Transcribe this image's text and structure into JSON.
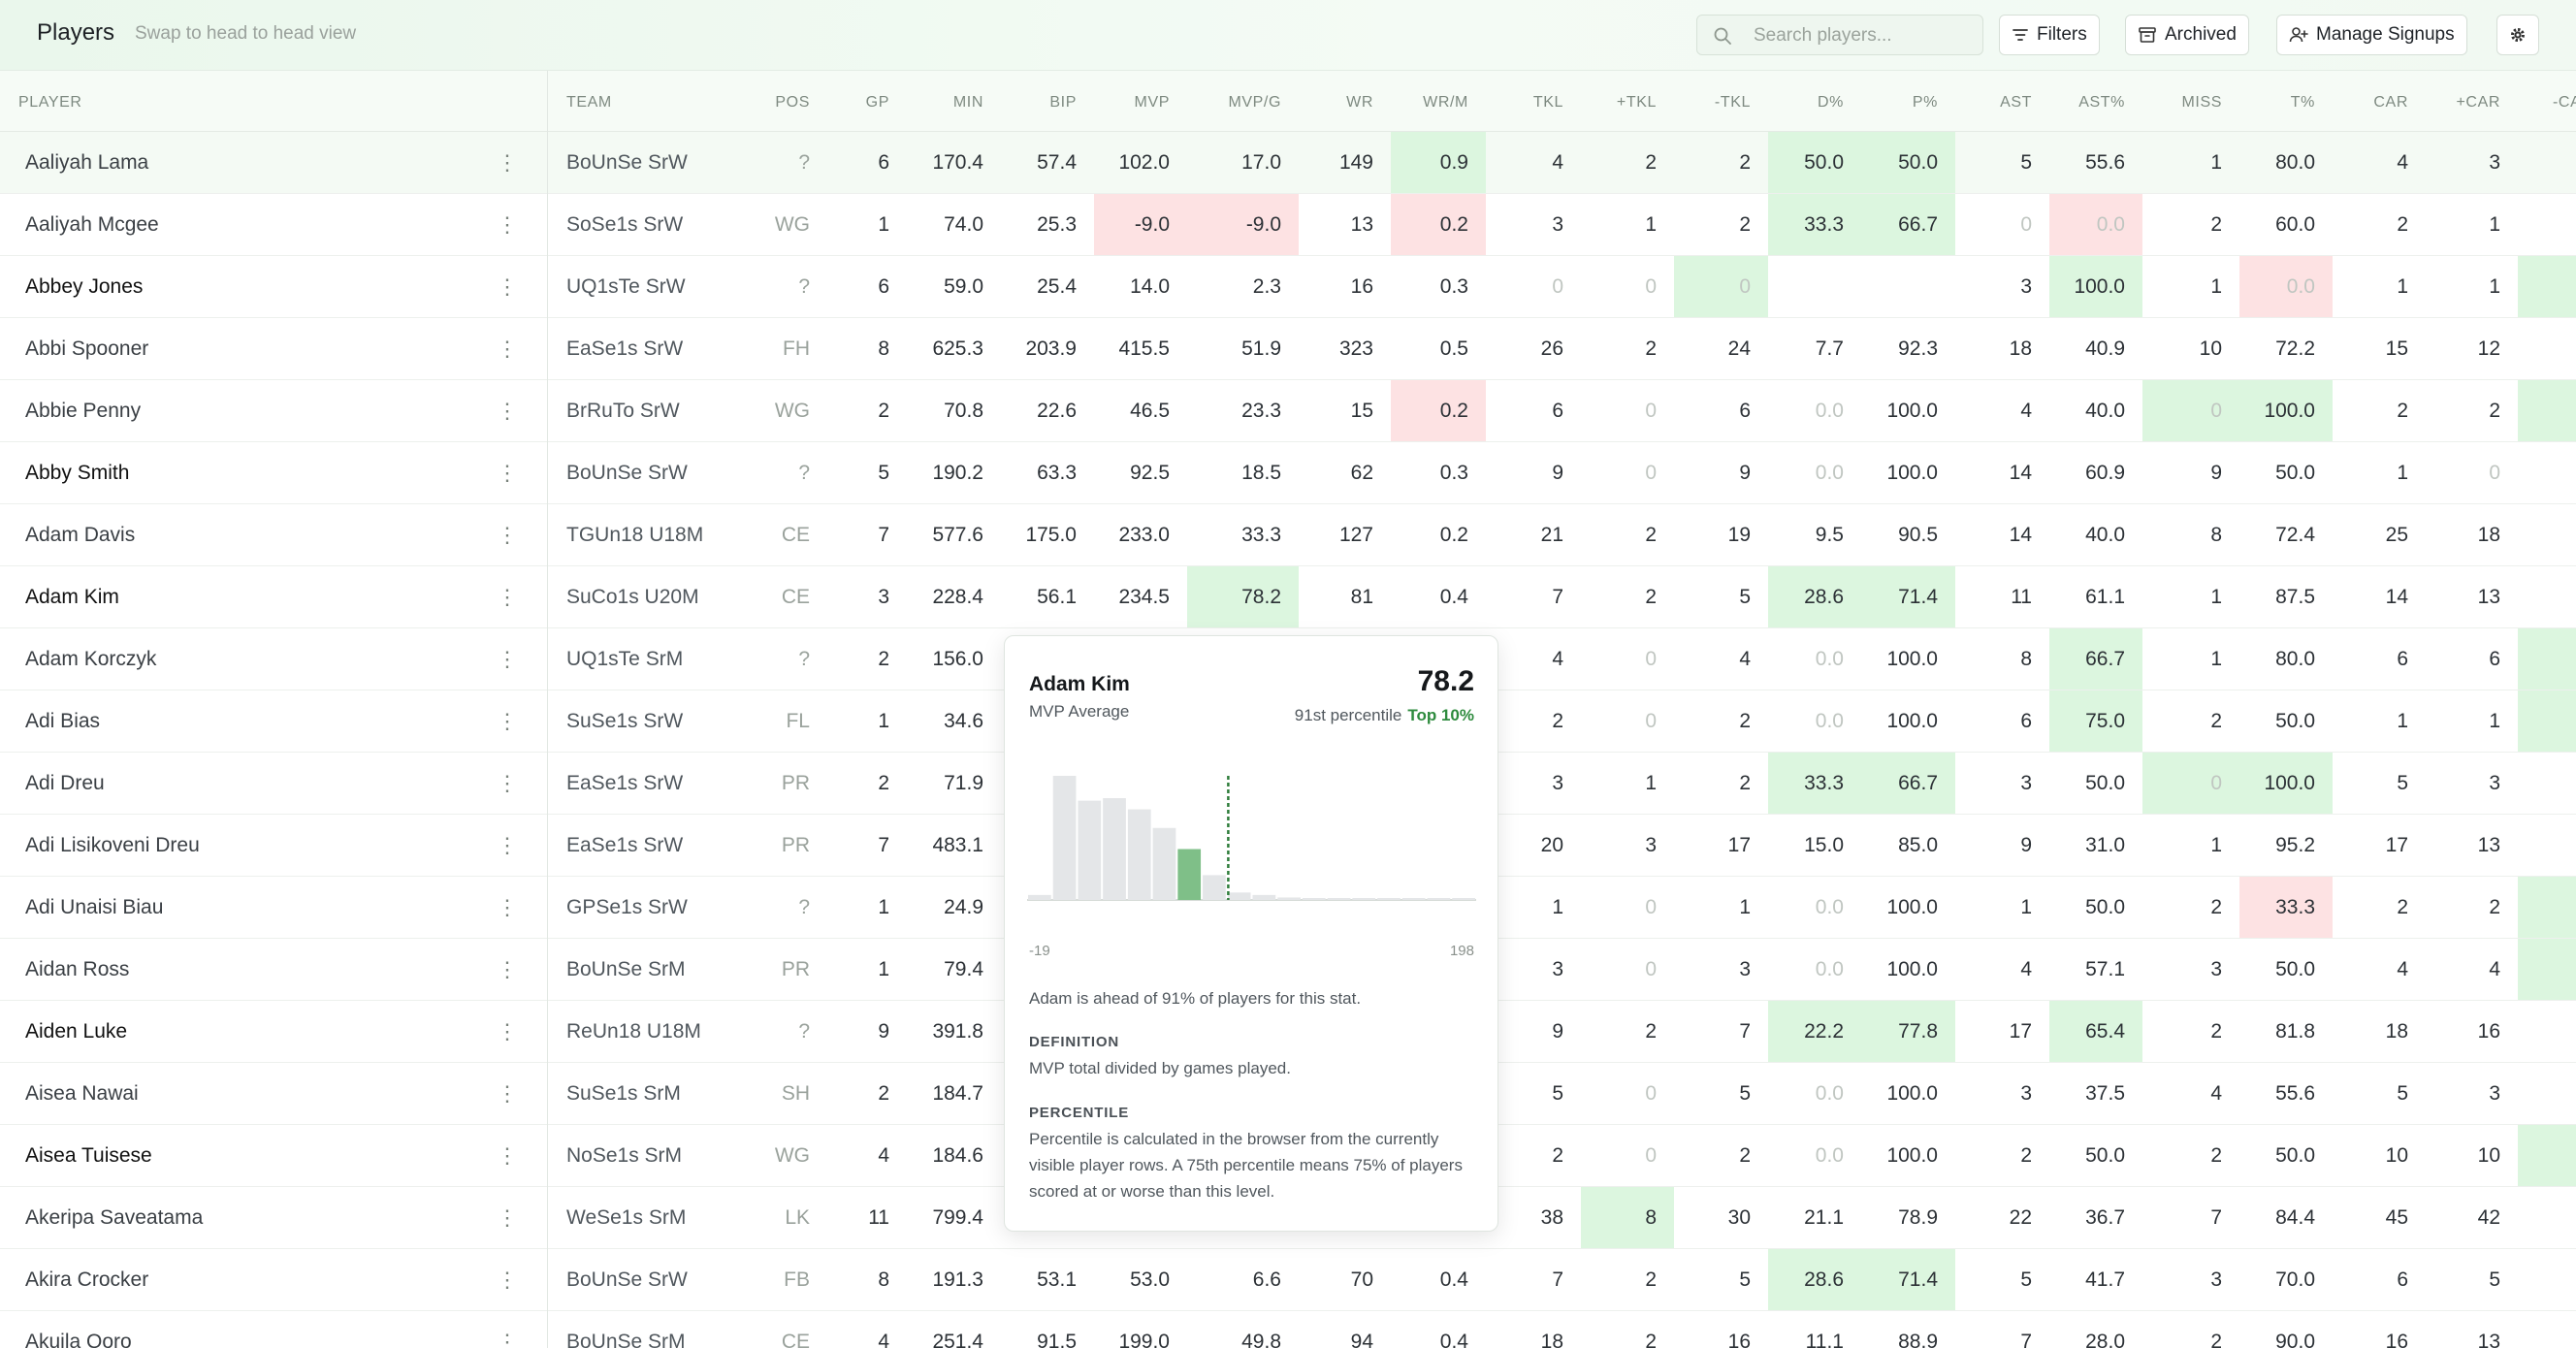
{
  "header": {
    "title": "Players",
    "subtitle": "Swap to head to head view",
    "search_placeholder": "Search players...",
    "buttons": {
      "filters": "Filters",
      "archived": "Archived",
      "manage_signups": "Manage Signups"
    }
  },
  "columns": [
    "PLAYER",
    "TEAM",
    "POS",
    "GP",
    "MIN",
    "BIP",
    "MVP",
    "MVP/G",
    "WR",
    "WR/M",
    "TKL",
    "+TKL",
    "-TKL",
    "D%",
    "P%",
    "AST",
    "AST%",
    "MISS",
    "T%",
    "CAR",
    "+CAR",
    "-CA"
  ],
  "rows": [
    {
      "name": "Aaliyah Lama",
      "team": "BoUnSe SrW",
      "pos": "?",
      "cells": [
        "6",
        "170.4",
        "57.4",
        "102.0",
        "17.0",
        "149",
        "0.9",
        "4",
        "2",
        "2",
        "50.0",
        "50.0",
        "5",
        "55.6",
        "1",
        "80.0",
        "4",
        "3",
        ""
      ],
      "green": [
        9,
        13,
        14
      ],
      "red": [],
      "zero": [],
      "bold": false,
      "hl": true
    },
    {
      "name": "Aaliyah Mcgee",
      "team": "SoSe1s SrW",
      "pos": "WG",
      "cells": [
        "1",
        "74.0",
        "25.3",
        "-9.0",
        "-9.0",
        "13",
        "0.2",
        "3",
        "1",
        "2",
        "33.3",
        "66.7",
        "0",
        "0.0",
        "2",
        "60.0",
        "2",
        "1",
        ""
      ],
      "green": [
        13,
        14
      ],
      "red": [
        6,
        7,
        9,
        16
      ],
      "zero": [
        15,
        16
      ],
      "bold": false,
      "hl": false
    },
    {
      "name": "Abbey Jones",
      "team": "UQ1sTe SrW",
      "pos": "?",
      "cells": [
        "6",
        "59.0",
        "25.4",
        "14.0",
        "2.3",
        "16",
        "0.3",
        "0",
        "0",
        "0",
        "",
        "",
        "3",
        "100.0",
        "1",
        "0.0",
        "1",
        "1",
        ""
      ],
      "green": [
        12,
        16,
        21
      ],
      "red": [
        18
      ],
      "zero": [
        10,
        11,
        12,
        18
      ],
      "bold": true,
      "hl": false
    },
    {
      "name": "Abbi Spooner",
      "team": "EaSe1s SrW",
      "pos": "FH",
      "cells": [
        "8",
        "625.3",
        "203.9",
        "415.5",
        "51.9",
        "323",
        "0.5",
        "26",
        "2",
        "24",
        "7.7",
        "92.3",
        "18",
        "40.9",
        "10",
        "72.2",
        "15",
        "12",
        ""
      ],
      "green": [],
      "red": [],
      "zero": [],
      "bold": false,
      "hl": false
    },
    {
      "name": "Abbie Penny",
      "team": "BrRuTo SrW",
      "pos": "WG",
      "cells": [
        "2",
        "70.8",
        "22.6",
        "46.5",
        "23.3",
        "15",
        "0.2",
        "6",
        "0",
        "6",
        "0.0",
        "100.0",
        "4",
        "40.0",
        "0",
        "100.0",
        "2",
        "2",
        ""
      ],
      "green": [
        17,
        18,
        21
      ],
      "red": [
        9
      ],
      "zero": [
        11,
        13,
        17
      ],
      "bold": false,
      "hl": false
    },
    {
      "name": "Abby Smith",
      "team": "BoUnSe SrW",
      "pos": "?",
      "cells": [
        "5",
        "190.2",
        "63.3",
        "92.5",
        "18.5",
        "62",
        "0.3",
        "9",
        "0",
        "9",
        "0.0",
        "100.0",
        "14",
        "60.9",
        "9",
        "50.0",
        "1",
        "0",
        ""
      ],
      "green": [],
      "red": [],
      "zero": [
        11,
        13,
        20
      ],
      "bold": true,
      "hl": false
    },
    {
      "name": "Adam Davis",
      "team": "TGUn18 U18M",
      "pos": "CE",
      "cells": [
        "7",
        "577.6",
        "175.0",
        "233.0",
        "33.3",
        "127",
        "0.2",
        "21",
        "2",
        "19",
        "9.5",
        "90.5",
        "14",
        "40.0",
        "8",
        "72.4",
        "25",
        "18",
        ""
      ],
      "green": [],
      "red": [],
      "zero": [],
      "bold": false,
      "hl": false
    },
    {
      "name": "Adam Kim",
      "team": "SuCo1s U20M",
      "pos": "CE",
      "cells": [
        "3",
        "228.4",
        "56.1",
        "234.5",
        "78.2",
        "81",
        "0.4",
        "7",
        "2",
        "5",
        "28.6",
        "71.4",
        "11",
        "61.1",
        "1",
        "87.5",
        "14",
        "13",
        ""
      ],
      "green": [
        7,
        13,
        14
      ],
      "red": [],
      "zero": [],
      "bold": true,
      "hl": false
    },
    {
      "name": "Adam Korczyk",
      "team": "UQ1sTe SrM",
      "pos": "?",
      "cells": [
        "2",
        "156.0",
        "",
        "",
        "",
        "",
        "",
        "4",
        "0",
        "4",
        "0.0",
        "100.0",
        "8",
        "66.7",
        "1",
        "80.0",
        "6",
        "6",
        ""
      ],
      "green": [
        16,
        21
      ],
      "red": [],
      "zero": [
        11,
        13
      ],
      "bold": false,
      "hl": false
    },
    {
      "name": "Adi Bias",
      "team": "SuSe1s SrW",
      "pos": "FL",
      "cells": [
        "1",
        "34.6",
        "",
        "",
        "",
        "",
        "",
        "2",
        "0",
        "2",
        "0.0",
        "100.0",
        "6",
        "75.0",
        "2",
        "50.0",
        "1",
        "1",
        ""
      ],
      "green": [
        16,
        21
      ],
      "red": [],
      "zero": [
        11,
        13
      ],
      "bold": false,
      "hl": false
    },
    {
      "name": "Adi Dreu",
      "team": "EaSe1s SrW",
      "pos": "PR",
      "cells": [
        "2",
        "71.9",
        "",
        "",
        "",
        "",
        "",
        "3",
        "1",
        "2",
        "33.3",
        "66.7",
        "3",
        "50.0",
        "0",
        "100.0",
        "5",
        "3",
        ""
      ],
      "green": [
        13,
        14,
        17,
        18
      ],
      "red": [],
      "zero": [
        17
      ],
      "bold": false,
      "hl": false
    },
    {
      "name": "Adi Lisikoveni Dreu",
      "team": "EaSe1s SrW",
      "pos": "PR",
      "cells": [
        "7",
        "483.1",
        "",
        "",
        "",
        "",
        "",
        "20",
        "3",
        "17",
        "15.0",
        "85.0",
        "9",
        "31.0",
        "1",
        "95.2",
        "17",
        "13",
        ""
      ],
      "green": [],
      "red": [],
      "zero": [],
      "bold": false,
      "hl": false
    },
    {
      "name": "Adi Unaisi Biau",
      "team": "GPSe1s SrW",
      "pos": "?",
      "cells": [
        "1",
        "24.9",
        "",
        "",
        "",
        "",
        "",
        "1",
        "0",
        "1",
        "0.0",
        "100.0",
        "1",
        "50.0",
        "2",
        "33.3",
        "2",
        "2",
        ""
      ],
      "green": [
        21
      ],
      "red": [
        18
      ],
      "zero": [
        11,
        13
      ],
      "bold": false,
      "hl": false
    },
    {
      "name": "Aidan Ross",
      "team": "BoUnSe SrM",
      "pos": "PR",
      "cells": [
        "1",
        "79.4",
        "",
        "",
        "",
        "",
        "",
        "3",
        "0",
        "3",
        "0.0",
        "100.0",
        "4",
        "57.1",
        "3",
        "50.0",
        "4",
        "4",
        ""
      ],
      "green": [
        21
      ],
      "red": [],
      "zero": [
        11,
        13
      ],
      "bold": false,
      "hl": false
    },
    {
      "name": "Aiden Luke",
      "team": "ReUn18 U18M",
      "pos": "?",
      "cells": [
        "9",
        "391.8",
        "",
        "",
        "",
        "",
        "",
        "9",
        "2",
        "7",
        "22.2",
        "77.8",
        "17",
        "65.4",
        "2",
        "81.8",
        "18",
        "16",
        ""
      ],
      "green": [
        13,
        14,
        16
      ],
      "red": [],
      "zero": [],
      "bold": true,
      "hl": false
    },
    {
      "name": "Aisea Nawai",
      "team": "SuSe1s SrM",
      "pos": "SH",
      "cells": [
        "2",
        "184.7",
        "",
        "",
        "",
        "",
        "",
        "5",
        "0",
        "5",
        "0.0",
        "100.0",
        "3",
        "37.5",
        "4",
        "55.6",
        "5",
        "3",
        ""
      ],
      "green": [],
      "red": [],
      "zero": [
        11,
        13
      ],
      "bold": false,
      "hl": false
    },
    {
      "name": "Aisea Tuisese",
      "team": "NoSe1s SrM",
      "pos": "WG",
      "cells": [
        "4",
        "184.6",
        "",
        "",
        "",
        "",
        "",
        "2",
        "0",
        "2",
        "0.0",
        "100.0",
        "2",
        "50.0",
        "2",
        "50.0",
        "10",
        "10",
        ""
      ],
      "green": [
        21
      ],
      "red": [],
      "zero": [
        11,
        13
      ],
      "bold": true,
      "hl": false
    },
    {
      "name": "Akeripa Saveatama",
      "team": "WeSe1s SrM",
      "pos": "LK",
      "cells": [
        "11",
        "799.4",
        "",
        "",
        "",
        "",
        "",
        "38",
        "8",
        "30",
        "21.1",
        "78.9",
        "22",
        "36.7",
        "7",
        "84.4",
        "45",
        "42",
        ""
      ],
      "green": [
        11
      ],
      "red": [],
      "zero": [],
      "bold": false,
      "hl": false
    },
    {
      "name": "Akira Crocker",
      "team": "BoUnSe SrW",
      "pos": "FB",
      "cells": [
        "8",
        "191.3",
        "53.1",
        "53.0",
        "6.6",
        "70",
        "0.4",
        "7",
        "2",
        "5",
        "28.6",
        "71.4",
        "5",
        "41.7",
        "3",
        "70.0",
        "6",
        "5",
        ""
      ],
      "green": [
        13,
        14
      ],
      "red": [],
      "zero": [],
      "bold": false,
      "hl": false
    },
    {
      "name": "Akuila Qoro",
      "team": "BoUnSe SrM",
      "pos": "CE",
      "cells": [
        "4",
        "251.4",
        "91.5",
        "199.0",
        "49.8",
        "94",
        "0.4",
        "18",
        "2",
        "16",
        "11.1",
        "88.9",
        "7",
        "28.0",
        "2",
        "90.0",
        "16",
        "13",
        ""
      ],
      "green": [],
      "red": [],
      "zero": [],
      "bold": false,
      "hl": false
    }
  ],
  "tooltip": {
    "player": "Adam Kim",
    "stat": "MVP Average",
    "value": "78.2",
    "percentile": "91st percentile",
    "badge": "Top 10%",
    "axis_min": "-19",
    "axis_max": "198",
    "summary": "Adam is ahead of 91% of players for this stat.",
    "definition_heading": "DEFINITION",
    "definition": "MVP total divided by games played.",
    "percentile_heading": "PERCENTILE",
    "percentile_text": "Percentile is calculated in the browser from the currently visible player rows. A 75th percentile means 75% of players scored at or worse than this level.",
    "histogram": [
      0.04,
      1.0,
      0.8,
      0.82,
      0.73,
      0.58,
      0.41,
      0.2,
      0.06,
      0.04,
      0.02,
      0.01,
      0.01,
      0.01,
      0.01,
      0.005,
      0.005,
      0.005
    ],
    "highlight_bin": 6,
    "marker_value": 78.2
  },
  "colors": {
    "accent_green": "#2e8b3e",
    "cell_green": "#dcf6df",
    "cell_red": "#fde2e3"
  }
}
